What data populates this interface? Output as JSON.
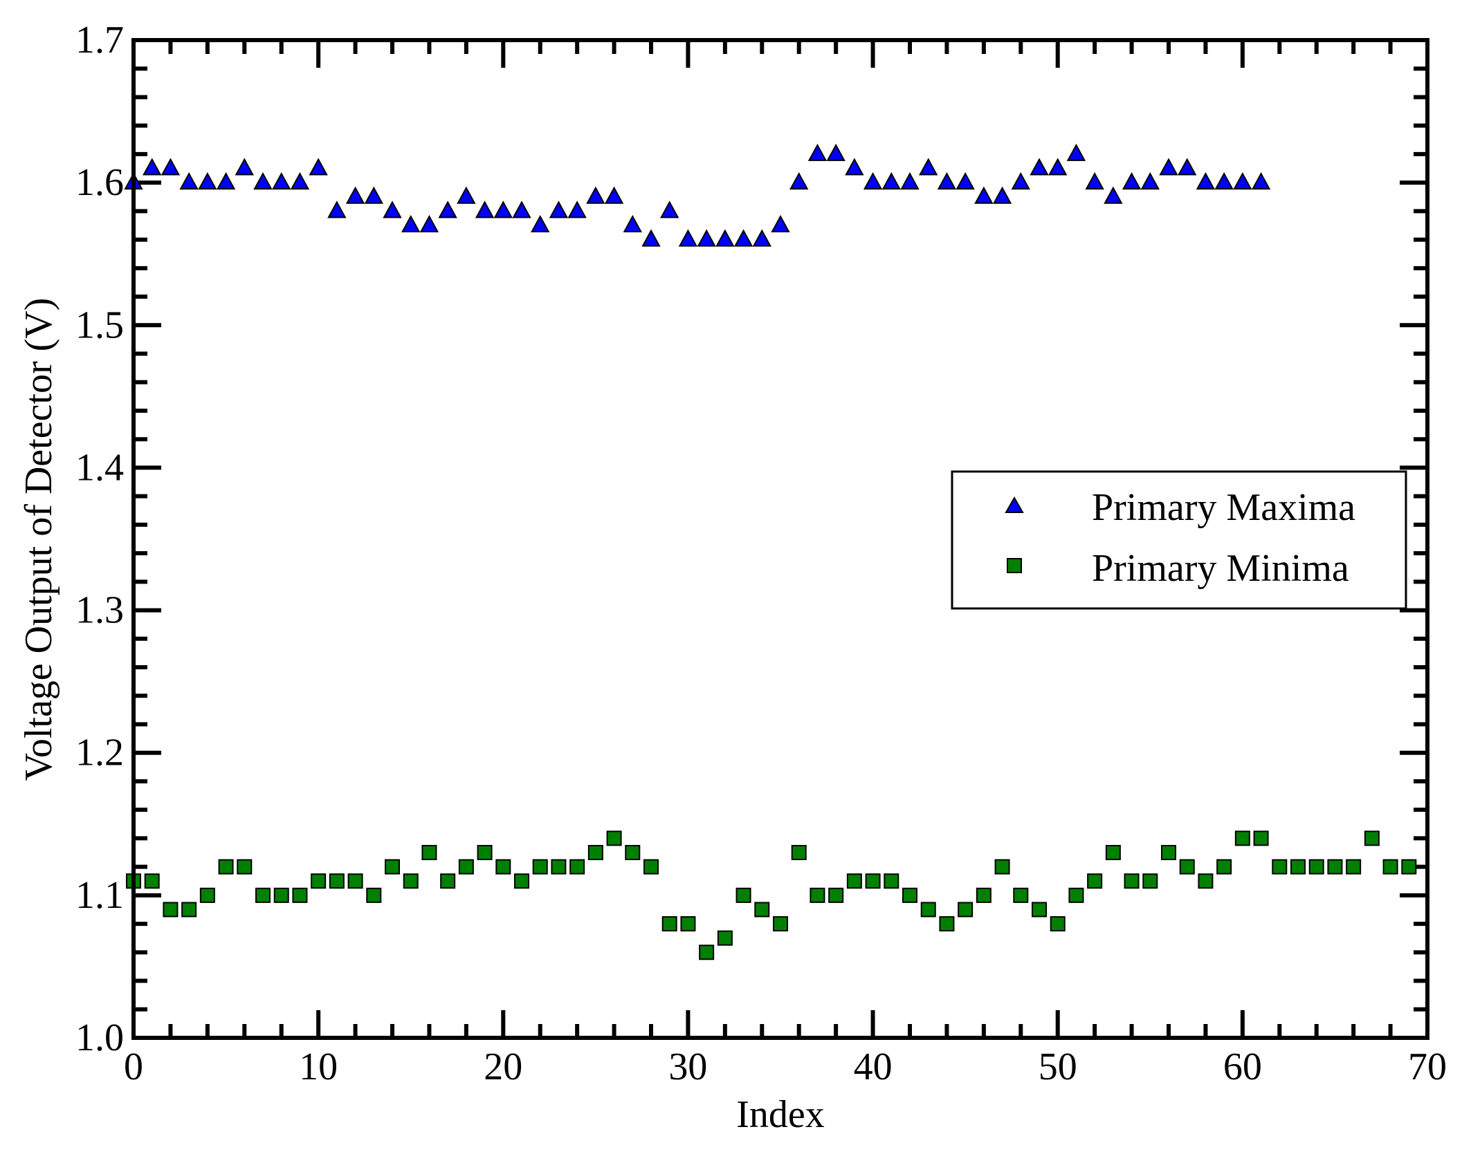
{
  "chart_data": {
    "type": "scatter",
    "title": "",
    "xlabel": "Index",
    "ylabel": "Voltage Output of Detector (V)",
    "xlim": [
      0,
      70
    ],
    "ylim": [
      1.0,
      1.7
    ],
    "x_ticks": [
      "0",
      "10",
      "20",
      "30",
      "40",
      "50",
      "60",
      "70"
    ],
    "y_ticks": [
      "1.0",
      "1.1",
      "1.2",
      "1.3",
      "1.4",
      "1.5",
      "1.6",
      "1.7"
    ],
    "grid": false,
    "legend_position": "right",
    "series": [
      {
        "name": "Primary Maxima",
        "marker": "triangle",
        "color": "#0000ff",
        "x": [
          0,
          1,
          2,
          3,
          4,
          5,
          6,
          7,
          8,
          9,
          10,
          11,
          12,
          13,
          14,
          15,
          16,
          17,
          18,
          19,
          20,
          21,
          22,
          23,
          24,
          25,
          26,
          27,
          28,
          29,
          30,
          31,
          32,
          33,
          34,
          35,
          36,
          37,
          38,
          39,
          40,
          41,
          42,
          43,
          44,
          45,
          46,
          47,
          48,
          49,
          50,
          51,
          52,
          53,
          54,
          55,
          56,
          57,
          58,
          59,
          60,
          61
        ],
        "y": [
          1.6,
          1.61,
          1.61,
          1.6,
          1.6,
          1.6,
          1.61,
          1.6,
          1.6,
          1.6,
          1.61,
          1.58,
          1.59,
          1.59,
          1.58,
          1.57,
          1.57,
          1.58,
          1.59,
          1.58,
          1.58,
          1.58,
          1.57,
          1.58,
          1.58,
          1.59,
          1.59,
          1.57,
          1.56,
          1.58,
          1.56,
          1.56,
          1.56,
          1.56,
          1.56,
          1.57,
          1.6,
          1.62,
          1.62,
          1.61,
          1.6,
          1.6,
          1.6,
          1.61,
          1.6,
          1.6,
          1.59,
          1.59,
          1.6,
          1.61,
          1.61,
          1.62,
          1.6,
          1.59,
          1.6,
          1.6,
          1.61,
          1.61,
          1.6,
          1.6,
          1.6,
          1.6
        ]
      },
      {
        "name": "Primary Minima",
        "marker": "square",
        "color": "#008000",
        "x": [
          0,
          1,
          2,
          3,
          4,
          5,
          6,
          7,
          8,
          9,
          10,
          11,
          12,
          13,
          14,
          15,
          16,
          17,
          18,
          19,
          20,
          21,
          22,
          23,
          24,
          25,
          26,
          27,
          28,
          29,
          30,
          31,
          32,
          33,
          34,
          35,
          36,
          37,
          38,
          39,
          40,
          41,
          42,
          43,
          44,
          45,
          46,
          47,
          48,
          49,
          50,
          51,
          52,
          53,
          54,
          55,
          56,
          57,
          58,
          59,
          60,
          61,
          62,
          63,
          64,
          65,
          66,
          67,
          68,
          69
        ],
        "y": [
          1.11,
          1.11,
          1.09,
          1.09,
          1.1,
          1.12,
          1.12,
          1.1,
          1.1,
          1.1,
          1.11,
          1.11,
          1.11,
          1.1,
          1.12,
          1.11,
          1.13,
          1.11,
          1.12,
          1.13,
          1.12,
          1.11,
          1.12,
          1.12,
          1.12,
          1.13,
          1.14,
          1.13,
          1.12,
          1.08,
          1.08,
          1.06,
          1.07,
          1.1,
          1.09,
          1.08,
          1.13,
          1.1,
          1.1,
          1.11,
          1.11,
          1.11,
          1.1,
          1.09,
          1.08,
          1.09,
          1.1,
          1.12,
          1.1,
          1.09,
          1.08,
          1.1,
          1.11,
          1.13,
          1.11,
          1.11,
          1.13,
          1.12,
          1.11,
          1.12,
          1.14,
          1.14,
          1.12,
          1.12,
          1.12,
          1.12,
          1.12,
          1.14,
          1.12,
          1.12
        ]
      }
    ]
  }
}
